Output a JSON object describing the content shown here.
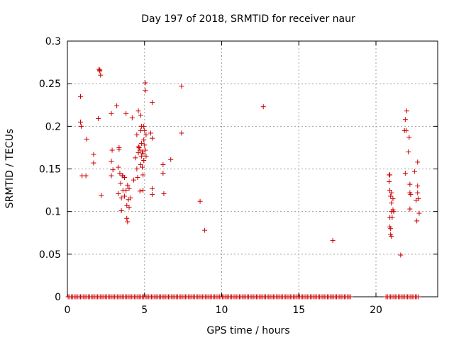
{
  "chart_data": {
    "type": "scatter",
    "title": "Day 197 of 2018, SRMTID for receiver naur",
    "xlabel": "GPS time / hours",
    "ylabel": "SRMTID / TECUs",
    "xlim": [
      0,
      24
    ],
    "ylim": [
      0,
      0.3
    ],
    "xticks": [
      0,
      5,
      10,
      15,
      20
    ],
    "xtick_labels": [
      "0",
      "5",
      "10",
      "15",
      "20"
    ],
    "yticks": [
      0,
      0.05,
      0.1,
      0.15,
      0.2,
      0.25,
      0.3
    ],
    "ytick_labels": [
      "0",
      "0.05",
      "0.1",
      "0.15",
      "0.2",
      "0.25",
      "0.3"
    ],
    "grid": true,
    "marker": "+",
    "color": "#cc0000",
    "series": [
      {
        "name": "SRMTID",
        "points": [
          [
            0.85,
            0.235
          ],
          [
            0.85,
            0.205
          ],
          [
            0.9,
            0.2
          ],
          [
            0.95,
            0.142
          ],
          [
            1.25,
            0.185
          ],
          [
            1.2,
            0.142
          ],
          [
            1.7,
            0.167
          ],
          [
            1.7,
            0.157
          ],
          [
            2.0,
            0.209
          ],
          [
            2.05,
            0.267
          ],
          [
            2.1,
            0.265
          ],
          [
            2.1,
            0.266
          ],
          [
            2.15,
            0.26
          ],
          [
            2.2,
            0.119
          ],
          [
            2.85,
            0.215
          ],
          [
            2.85,
            0.159
          ],
          [
            2.9,
            0.172
          ],
          [
            2.85,
            0.142
          ],
          [
            2.95,
            0.149
          ],
          [
            3.2,
            0.224
          ],
          [
            3.3,
            0.152
          ],
          [
            3.3,
            0.121
          ],
          [
            3.35,
            0.175
          ],
          [
            3.35,
            0.173
          ],
          [
            3.4,
            0.145
          ],
          [
            3.45,
            0.133
          ],
          [
            3.5,
            0.116
          ],
          [
            3.5,
            0.101
          ],
          [
            3.55,
            0.142
          ],
          [
            3.6,
            0.142
          ],
          [
            3.6,
            0.125
          ],
          [
            3.7,
            0.118
          ],
          [
            3.7,
            0.14
          ],
          [
            3.8,
            0.215
          ],
          [
            3.8,
            0.125
          ],
          [
            3.85,
            0.107
          ],
          [
            3.85,
            0.092
          ],
          [
            3.9,
            0.088
          ],
          [
            3.9,
            0.131
          ],
          [
            3.95,
            0.114
          ],
          [
            4.0,
            0.105
          ],
          [
            4.0,
            0.127
          ],
          [
            4.1,
            0.116
          ],
          [
            4.2,
            0.21
          ],
          [
            4.3,
            0.137
          ],
          [
            4.4,
            0.163
          ],
          [
            4.5,
            0.19
          ],
          [
            4.5,
            0.15
          ],
          [
            4.55,
            0.14
          ],
          [
            4.6,
            0.218
          ],
          [
            4.6,
            0.176
          ],
          [
            4.6,
            0.169
          ],
          [
            4.65,
            0.175
          ],
          [
            4.7,
            0.172
          ],
          [
            4.7,
            0.124
          ],
          [
            4.75,
            0.213
          ],
          [
            4.75,
            0.195
          ],
          [
            4.75,
            0.155
          ],
          [
            4.8,
            0.2
          ],
          [
            4.8,
            0.18
          ],
          [
            4.8,
            0.165
          ],
          [
            4.85,
            0.17
          ],
          [
            4.85,
            0.152
          ],
          [
            4.9,
            0.168
          ],
          [
            4.9,
            0.143
          ],
          [
            4.9,
            0.125
          ],
          [
            4.95,
            0.2
          ],
          [
            4.95,
            0.184
          ],
          [
            4.95,
            0.16
          ],
          [
            5.0,
            0.195
          ],
          [
            5.0,
            0.178
          ],
          [
            5.05,
            0.251
          ],
          [
            5.05,
            0.242
          ],
          [
            5.05,
            0.172
          ],
          [
            5.1,
            0.19
          ],
          [
            5.1,
            0.165
          ],
          [
            5.4,
            0.192
          ],
          [
            5.5,
            0.228
          ],
          [
            5.5,
            0.186
          ],
          [
            5.5,
            0.127
          ],
          [
            5.5,
            0.12
          ],
          [
            6.2,
            0.155
          ],
          [
            6.2,
            0.145
          ],
          [
            6.25,
            0.121
          ],
          [
            6.7,
            0.161
          ],
          [
            7.4,
            0.247
          ],
          [
            7.4,
            0.192
          ],
          [
            8.6,
            0.112
          ],
          [
            8.9,
            0.078
          ],
          [
            12.7,
            0.223
          ],
          [
            17.2,
            0.066
          ],
          [
            20.85,
            0.143
          ],
          [
            20.9,
            0.143
          ],
          [
            20.85,
            0.135
          ],
          [
            20.9,
            0.125
          ],
          [
            20.95,
            0.118
          ],
          [
            21.0,
            0.122
          ],
          [
            21.0,
            0.11
          ],
          [
            21.0,
            0.1
          ],
          [
            20.9,
            0.093
          ],
          [
            20.9,
            0.082
          ],
          [
            20.95,
            0.08
          ],
          [
            20.95,
            0.073
          ],
          [
            21.0,
            0.071
          ],
          [
            21.1,
            0.115
          ],
          [
            21.1,
            0.102
          ],
          [
            21.15,
            0.1
          ],
          [
            21.05,
            0.093
          ],
          [
            21.6,
            0.049
          ],
          [
            21.85,
            0.195
          ],
          [
            21.9,
            0.208
          ],
          [
            21.95,
            0.195
          ],
          [
            22.0,
            0.218
          ],
          [
            21.9,
            0.145
          ],
          [
            22.1,
            0.17
          ],
          [
            22.15,
            0.187
          ],
          [
            22.2,
            0.122
          ],
          [
            22.2,
            0.132
          ],
          [
            22.25,
            0.12
          ],
          [
            22.2,
            0.103
          ],
          [
            22.5,
            0.147
          ],
          [
            22.6,
            0.113
          ],
          [
            22.65,
            0.089
          ],
          [
            22.7,
            0.158
          ],
          [
            22.7,
            0.13
          ],
          [
            22.7,
            0.122
          ],
          [
            22.75,
            0.115
          ],
          [
            22.8,
            0.098
          ]
        ],
        "zero_value_times": [
          0.05,
          0.15,
          0.25,
          0.35,
          0.45,
          0.55,
          0.65,
          0.75,
          0.85,
          0.95,
          1.05,
          1.15,
          1.25,
          1.35,
          1.45,
          1.55,
          1.65,
          1.75,
          1.85,
          1.95,
          2.05,
          2.15,
          2.25,
          2.35,
          2.45,
          2.55,
          2.65,
          2.75,
          2.85,
          2.95,
          3.05,
          3.15,
          3.25,
          3.35,
          3.45,
          3.55,
          3.65,
          3.75,
          3.85,
          3.95,
          4.05,
          4.15,
          4.25,
          4.35,
          4.45,
          4.55,
          4.65,
          4.75,
          4.85,
          4.95,
          5.05,
          5.15,
          5.25,
          5.35,
          5.45,
          5.55,
          5.65,
          5.75,
          5.85,
          5.95,
          6.05,
          6.15,
          6.25,
          6.35,
          6.45,
          6.55,
          6.65,
          6.75,
          6.85,
          6.95,
          7.05,
          7.15,
          7.25,
          7.35,
          7.45,
          7.55,
          7.65,
          7.75,
          7.85,
          7.95,
          8.05,
          8.15,
          8.25,
          8.35,
          8.45,
          8.55,
          8.65,
          8.75,
          8.85,
          8.95,
          9.05,
          9.15,
          9.25,
          9.35,
          9.45,
          9.55,
          9.65,
          9.75,
          9.85,
          9.95,
          10.05,
          10.15,
          10.25,
          10.35,
          10.45,
          10.55,
          10.65,
          10.75,
          10.85,
          10.95,
          11.05,
          11.15,
          11.25,
          11.35,
          11.45,
          11.55,
          11.65,
          11.75,
          11.85,
          11.95,
          12.05,
          12.15,
          12.25,
          12.35,
          12.45,
          12.55,
          12.65,
          12.75,
          12.85,
          12.95,
          13.05,
          13.15,
          13.25,
          13.35,
          13.45,
          13.55,
          13.65,
          13.75,
          13.85,
          13.95,
          14.05,
          14.15,
          14.25,
          14.35,
          14.45,
          14.55,
          14.65,
          14.75,
          14.85,
          14.95,
          15.05,
          15.15,
          15.25,
          15.35,
          15.45,
          15.55,
          15.65,
          15.75,
          15.85,
          15.95,
          16.05,
          16.15,
          16.25,
          16.35,
          16.45,
          16.55,
          16.65,
          16.75,
          16.85,
          16.95,
          17.05,
          17.15,
          17.25,
          17.35,
          17.45,
          17.55,
          17.65,
          17.75,
          17.85,
          17.95,
          18.05,
          18.15,
          18.25,
          18.35,
          20.65,
          20.75,
          20.85,
          20.95,
          21.05,
          21.15,
          21.25,
          21.35,
          21.45,
          21.55,
          21.65,
          21.75,
          21.85,
          21.95,
          22.05,
          22.15,
          22.25,
          22.35,
          22.45,
          22.55,
          22.65,
          22.75
        ]
      }
    ]
  }
}
